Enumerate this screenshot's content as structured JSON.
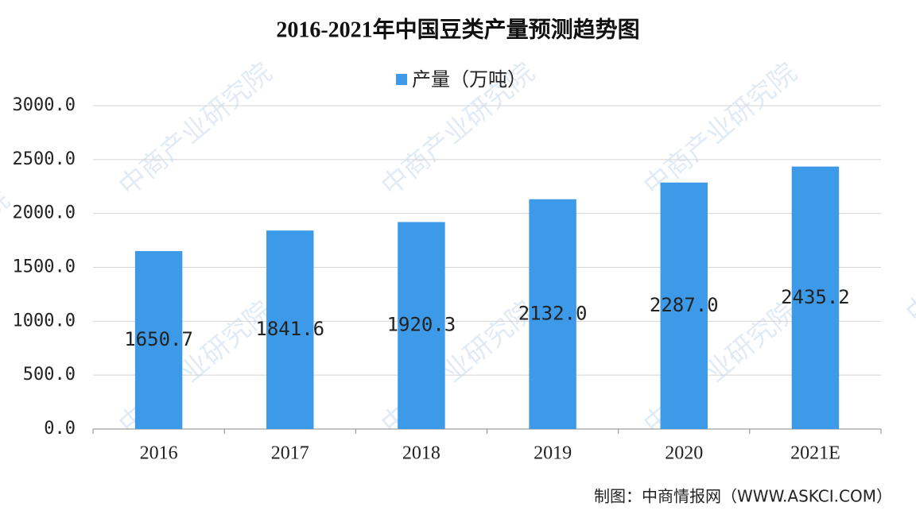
{
  "chart_data": {
    "type": "bar",
    "title": "2016-2021年中国豆类产量预测趋势图",
    "categories": [
      "2016",
      "2017",
      "2018",
      "2019",
      "2020",
      "2021E"
    ],
    "series": [
      {
        "name": "产量（万吨）",
        "color": "#3d9ae8",
        "values": [
          1650.7,
          1841.6,
          1920.3,
          2132.0,
          2287.0,
          2435.2
        ],
        "value_labels": [
          "1650.7",
          "1841.6",
          "1920.3",
          "2132.0",
          "2287.0",
          "2435.2"
        ]
      }
    ],
    "ylim": [
      0,
      3000
    ],
    "yticks": [
      {
        "value": 0,
        "label": "0.0"
      },
      {
        "value": 500,
        "label": "500.0"
      },
      {
        "value": 1000,
        "label": "1000.0"
      },
      {
        "value": 1500,
        "label": "1500.0"
      },
      {
        "value": 2000,
        "label": "2000.0"
      },
      {
        "value": 2500,
        "label": "2500.0"
      },
      {
        "value": 3000,
        "label": "3000.0"
      }
    ],
    "grid": true,
    "legend": "top",
    "source": "制图：中商情报网（WWW.ASKCI.COM）",
    "watermark": "中商产业研究院"
  }
}
